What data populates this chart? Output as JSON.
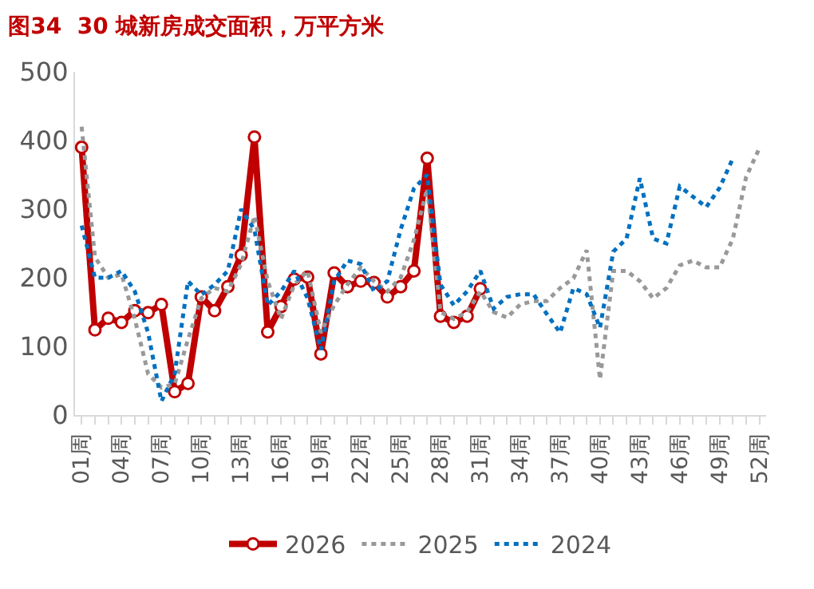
{
  "chart_data": {
    "type": "line",
    "title": "图34  30 城新房成交面积，万平方米",
    "categories": [
      "01周",
      null,
      null,
      "04周",
      null,
      null,
      "07周",
      null,
      null,
      "10周",
      null,
      null,
      "13周",
      null,
      null,
      "16周",
      null,
      null,
      "19周",
      null,
      null,
      "22周",
      null,
      null,
      "25周",
      null,
      null,
      "28周",
      null,
      null,
      "31周",
      null,
      null,
      "34周",
      null,
      null,
      "37周",
      null,
      null,
      "40周",
      null,
      null,
      "43周",
      null,
      null,
      "46周",
      null,
      null,
      "49周",
      null,
      null,
      "52周"
    ],
    "series": [
      {
        "name": "2026",
        "color": "#c00000",
        "marker": "circle",
        "line_style": "solid",
        "values": [
          390,
          124,
          141,
          135,
          152,
          149,
          161,
          34,
          46,
          172,
          152,
          187,
          233,
          405,
          121,
          158,
          198,
          201,
          89,
          207,
          187,
          195,
          193,
          172,
          187,
          210,
          374,
          144,
          135,
          144,
          184,
          null,
          null,
          null,
          null,
          null,
          null,
          null,
          null,
          null,
          null,
          null,
          null,
          null,
          null,
          null,
          null,
          null,
          null,
          null,
          null,
          null
        ]
      },
      {
        "name": "2025",
        "color": "#999999",
        "marker": "none",
        "line_style": "dotted",
        "values": [
          420,
          230,
          200,
          205,
          140,
          60,
          40,
          45,
          110,
          170,
          185,
          180,
          220,
          290,
          195,
          140,
          190,
          210,
          120,
          160,
          190,
          215,
          195,
          180,
          200,
          255,
          330,
          150,
          140,
          150,
          180,
          150,
          142,
          161,
          166,
          166,
          185,
          199,
          240,
          52,
          210,
          210,
          195,
          170,
          185,
          218,
          225,
          215,
          215,
          257,
          347,
          389
        ]
      },
      {
        "name": "2024",
        "color": "#0070c0",
        "marker": "none",
        "line_style": "dotted",
        "values": [
          276,
          200,
          200,
          210,
          180,
          120,
          20,
          60,
          195,
          175,
          190,
          210,
          300,
          270,
          160,
          180,
          210,
          170,
          95,
          195,
          225,
          220,
          180,
          195,
          270,
          330,
          350,
          190,
          160,
          180,
          210,
          155,
          172,
          176,
          176,
          147,
          120,
          185,
          176,
          127,
          238,
          257,
          345,
          257,
          250,
          333,
          318,
          303,
          331,
          374,
          null,
          null
        ]
      }
    ],
    "ylim": [
      0,
      500
    ],
    "yticks": [
      0,
      100,
      200,
      300,
      400,
      500
    ],
    "legend": "bottom"
  }
}
